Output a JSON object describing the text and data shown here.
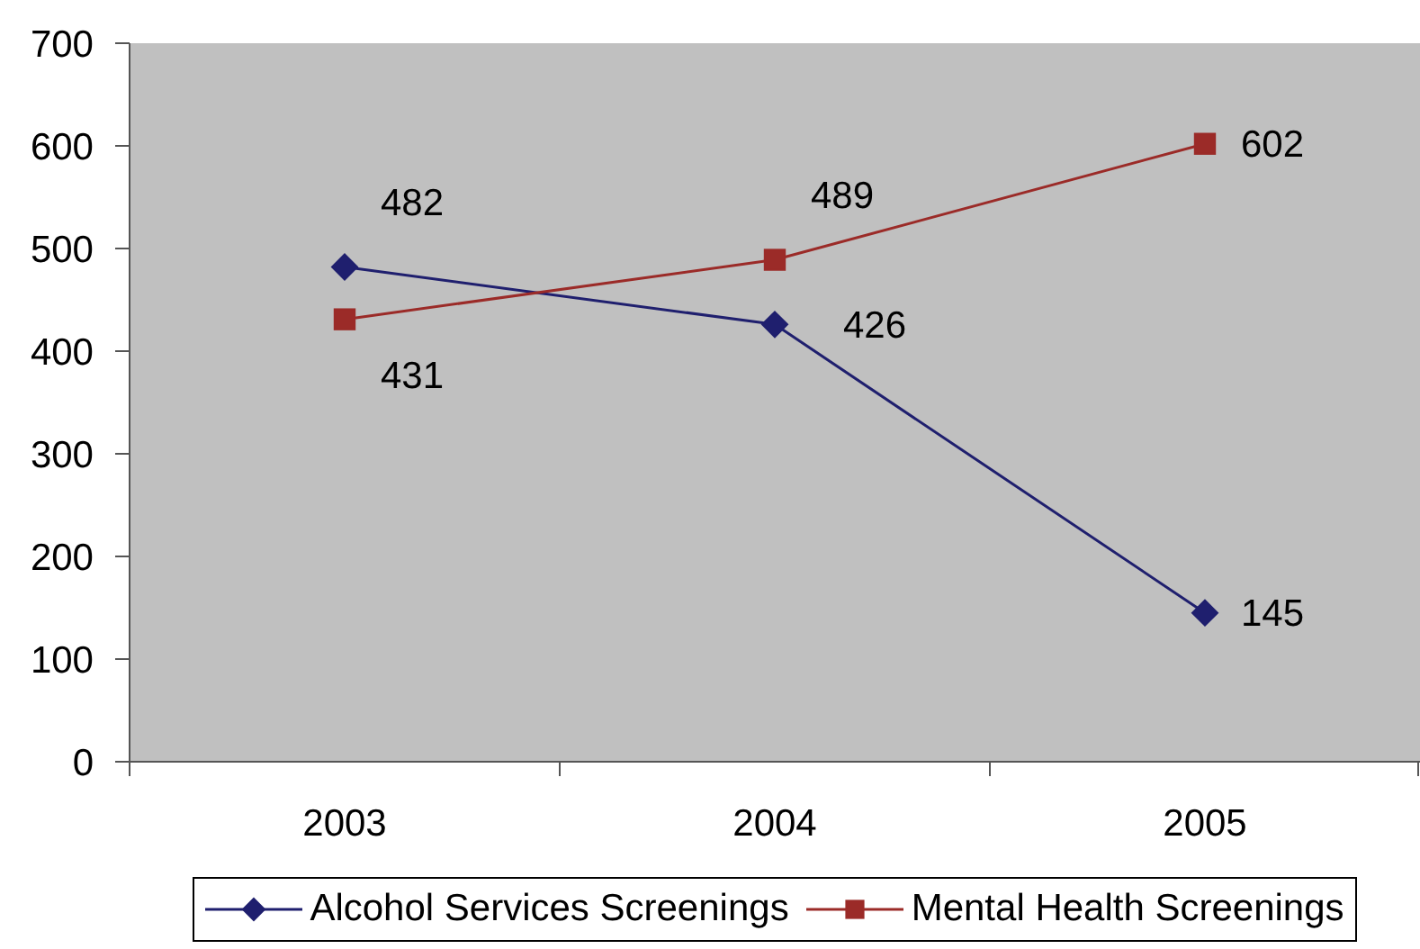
{
  "chart_data": {
    "type": "line",
    "categories": [
      "2003",
      "2004",
      "2005"
    ],
    "series": [
      {
        "name": "Alcohol Services Screenings",
        "color": "#1f1f6e",
        "values": [
          482,
          426,
          145
        ],
        "marker": "diamond"
      },
      {
        "name": "Mental Health Screenings",
        "color": "#9b2b28",
        "values": [
          431,
          489,
          602
        ],
        "marker": "square"
      }
    ],
    "ylim": [
      0,
      700
    ],
    "yticks": [
      0,
      100,
      200,
      300,
      400,
      500,
      600,
      700
    ],
    "grid": false,
    "legend": "bottom",
    "data_labels": true,
    "line_style": "solid"
  }
}
